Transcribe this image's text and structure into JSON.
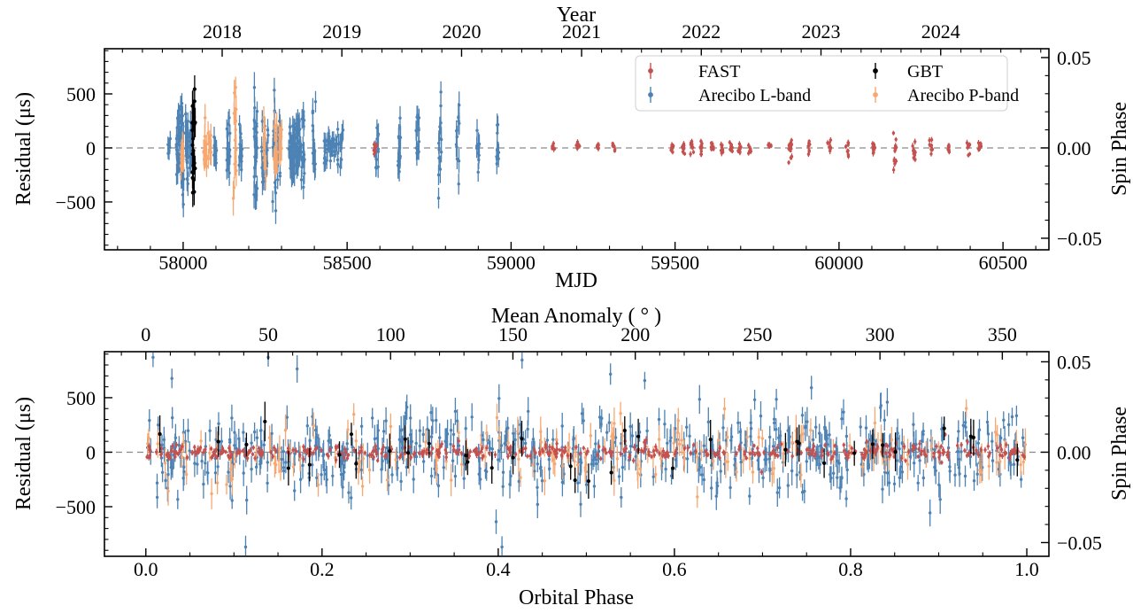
{
  "rng_seed": 20240917,
  "figure": {
    "background": "#ffffff",
    "spine_color": "#000000",
    "zero_line_color": "#8a8a8a"
  },
  "legend": {
    "items": [
      {
        "label": "FAST",
        "color": "#c5514f",
        "marker": "errorbar-dot"
      },
      {
        "label": "Arecibo L-band",
        "color": "#4d82b4",
        "marker": "errorbar-dot"
      },
      {
        "label": "GBT",
        "color": "#000000",
        "marker": "errorbar-dot"
      },
      {
        "label": "Arecibo P-band",
        "color": "#f7a871",
        "marker": "errorbar-dot"
      }
    ]
  },
  "chart_data": [
    {
      "id": "residuals-vs-mjd",
      "type": "scatter",
      "top_axis_label": "Year",
      "xlabel": "MJD",
      "ylabel": "Residual (μs)",
      "ylabel_right": "Spin Phase",
      "xlim": [
        57760,
        60640
      ],
      "ylim": [
        -943,
        918
      ],
      "ylim_right": [
        -0.0564,
        0.0549
      ],
      "xticks": [
        {
          "v": 58000,
          "label": "58000"
        },
        {
          "v": 58500,
          "label": "58500"
        },
        {
          "v": 59000,
          "label": "59000"
        },
        {
          "v": 59500,
          "label": "59500"
        },
        {
          "v": 60000,
          "label": "60000"
        },
        {
          "v": 60500,
          "label": "60500"
        }
      ],
      "xtick_minor_step": 100,
      "yticks": [
        {
          "v": -500,
          "label": "−500"
        },
        {
          "v": 0,
          "label": "0"
        },
        {
          "v": 500,
          "label": "500"
        }
      ],
      "ytick_minor_step": 100,
      "right_ticks": [
        {
          "v": 0.05,
          "label": "0.05"
        },
        {
          "v": 0.0,
          "label": "0.00"
        },
        {
          "v": -0.05,
          "label": "−0.05"
        }
      ],
      "right_tick_minor_step": 0.01,
      "top_ticks": [
        {
          "v": 58119,
          "label": "2018"
        },
        {
          "v": 58484,
          "label": "2019"
        },
        {
          "v": 58849,
          "label": "2020"
        },
        {
          "v": 59215,
          "label": "2021"
        },
        {
          "v": 59580,
          "label": "2022"
        },
        {
          "v": 59945,
          "label": "2023"
        },
        {
          "v": 60310,
          "label": "2024"
        }
      ],
      "top_tick_minor_origin": 57754,
      "top_tick_minor_step": 60.875,
      "zero_line_color": "#8a8a8a",
      "series": [
        {
          "name": "Arecibo L-band",
          "color": "#4d82b4",
          "clusters": [
            [
              57957,
              8,
              110,
              70
            ],
            [
              57984,
              25,
              420,
              100
            ],
            [
              57997,
              35,
              620,
              110
            ],
            [
              58011,
              25,
              380,
              100
            ],
            [
              58024,
              20,
              300,
              95
            ],
            [
              58097,
              10,
              230,
              90
            ],
            [
              58138,
              16,
              350,
              100
            ],
            [
              58175,
              12,
              280,
              95
            ],
            [
              58221,
              26,
              700,
              120
            ],
            [
              58243,
              14,
              380,
              100
            ],
            [
              58254,
              12,
              350,
              95
            ],
            [
              58278,
              22,
              760,
              120
            ],
            [
              58292,
              14,
              400,
              100
            ],
            [
              58327,
              18,
              320,
              95
            ],
            [
              58336,
              18,
              350,
              95
            ],
            [
              58345,
              16,
              300,
              90
            ],
            [
              58354,
              14,
              280,
              90
            ],
            [
              58365,
              16,
              450,
              100
            ],
            [
              58399,
              14,
              480,
              105
            ],
            [
              58435,
              10,
              230,
              85
            ],
            [
              58445,
              8,
              200,
              85
            ],
            [
              58456,
              8,
              180,
              80
            ],
            [
              58470,
              8,
              200,
              80
            ],
            [
              58483,
              8,
              230,
              85
            ],
            [
              58591,
              12,
              280,
              95
            ],
            [
              58659,
              14,
              420,
              105
            ],
            [
              58715,
              12,
              380,
              100
            ],
            [
              58783,
              14,
              550,
              110
            ],
            [
              58837,
              12,
              450,
              105
            ],
            [
              58899,
              10,
              280,
              95
            ],
            [
              58958,
              10,
              280,
              95
            ]
          ]
        },
        {
          "name": "Arecibo P-band",
          "color": "#f7a871",
          "clusters": [
            [
              57997,
              12,
              280,
              110
            ],
            [
              58067,
              12,
              300,
              110
            ],
            [
              58081,
              8,
              200,
              100
            ],
            [
              58157,
              14,
              650,
              130
            ],
            [
              58248,
              10,
              320,
              110
            ],
            [
              58282,
              12,
              350,
              115
            ],
            [
              58296,
              8,
              250,
              105
            ]
          ]
        },
        {
          "name": "FAST",
          "color": "#c5514f",
          "clusters": [
            [
              58586,
              8,
              80,
              25
            ],
            [
              59128,
              6,
              60,
              22
            ],
            [
              59204,
              6,
              60,
              22
            ],
            [
              59263,
              6,
              60,
              22
            ],
            [
              59312,
              6,
              60,
              22
            ],
            [
              59492,
              8,
              70,
              24
            ],
            [
              59525,
              8,
              70,
              24
            ],
            [
              59552,
              9,
              80,
              24
            ],
            [
              59581,
              9,
              80,
              24
            ],
            [
              59614,
              8,
              70,
              24
            ],
            [
              59641,
              9,
              90,
              24
            ],
            [
              59670,
              8,
              80,
              24
            ],
            [
              59697,
              8,
              80,
              24
            ],
            [
              59727,
              8,
              80,
              24
            ],
            [
              59789,
              6,
              60,
              22
            ],
            [
              59851,
              12,
              260,
              28
            ],
            [
              59911,
              8,
              110,
              24
            ],
            [
              59970,
              8,
              90,
              24
            ],
            [
              60024,
              8,
              90,
              24
            ],
            [
              60105,
              8,
              90,
              24
            ],
            [
              60170,
              12,
              300,
              28
            ],
            [
              60229,
              9,
              130,
              25
            ],
            [
              60281,
              8,
              90,
              24
            ],
            [
              60335,
              7,
              70,
              23
            ],
            [
              60395,
              8,
              100,
              24
            ],
            [
              60430,
              8,
              100,
              24
            ]
          ]
        },
        {
          "name": "GBT",
          "color": "#000000",
          "clusters": [
            [
              58032,
              22,
              660,
              120
            ]
          ]
        }
      ]
    },
    {
      "id": "residuals-vs-orbital-phase",
      "type": "scatter",
      "top_axis_label": "Mean Anomaly ( ° )",
      "xlabel": "Orbital Phase",
      "ylabel": "Residual (μs)",
      "ylabel_right": "Spin Phase",
      "xlim": [
        -0.047,
        1.0251
      ],
      "ylim": [
        -955,
        922
      ],
      "ylim_right": [
        -0.0576,
        0.0556
      ],
      "xticks": [
        {
          "v": 0.0,
          "label": "0.0"
        },
        {
          "v": 0.2,
          "label": "0.2"
        },
        {
          "v": 0.4,
          "label": "0.4"
        },
        {
          "v": 0.6,
          "label": "0.6"
        },
        {
          "v": 0.8,
          "label": "0.8"
        },
        {
          "v": 1.0,
          "label": "1.0"
        }
      ],
      "xtick_minor_step": 0.05,
      "yticks": [
        {
          "v": -500,
          "label": "−500"
        },
        {
          "v": 0,
          "label": "0"
        },
        {
          "v": 500,
          "label": "500"
        }
      ],
      "ytick_minor_step": 100,
      "right_ticks": [
        {
          "v": 0.05,
          "label": "0.05"
        },
        {
          "v": 0.0,
          "label": "0.00"
        },
        {
          "v": -0.05,
          "label": "−0.05"
        }
      ],
      "right_tick_minor_step": 0.01,
      "top_ticks_degrees": [
        0,
        50,
        100,
        150,
        200,
        250,
        300,
        350
      ],
      "top_tick_minor_step_degrees": 10,
      "deg_per_phase": 360,
      "zero_line_color": "#8a8a8a",
      "series": [
        {
          "name": "Arecibo L-band",
          "color": "#4d82b4",
          "n": 640,
          "sigma": 175,
          "err": 105,
          "tail_frac": 0.05,
          "tail_mult": 2.6
        },
        {
          "name": "Arecibo P-band",
          "color": "#f7a871",
          "n": 170,
          "sigma": 140,
          "err": 115,
          "tail_frac": 0.04,
          "tail_mult": 2.2
        },
        {
          "name": "FAST",
          "color": "#c5514f",
          "n": 460,
          "sigma": 32,
          "err": 26,
          "tail_frac": 0.02,
          "tail_mult": 2.0
        },
        {
          "name": "GBT",
          "color": "#000000",
          "n": 38,
          "sigma": 160,
          "err": 140,
          "tail_frac": 0.1,
          "tail_mult": 2.2
        }
      ]
    }
  ]
}
